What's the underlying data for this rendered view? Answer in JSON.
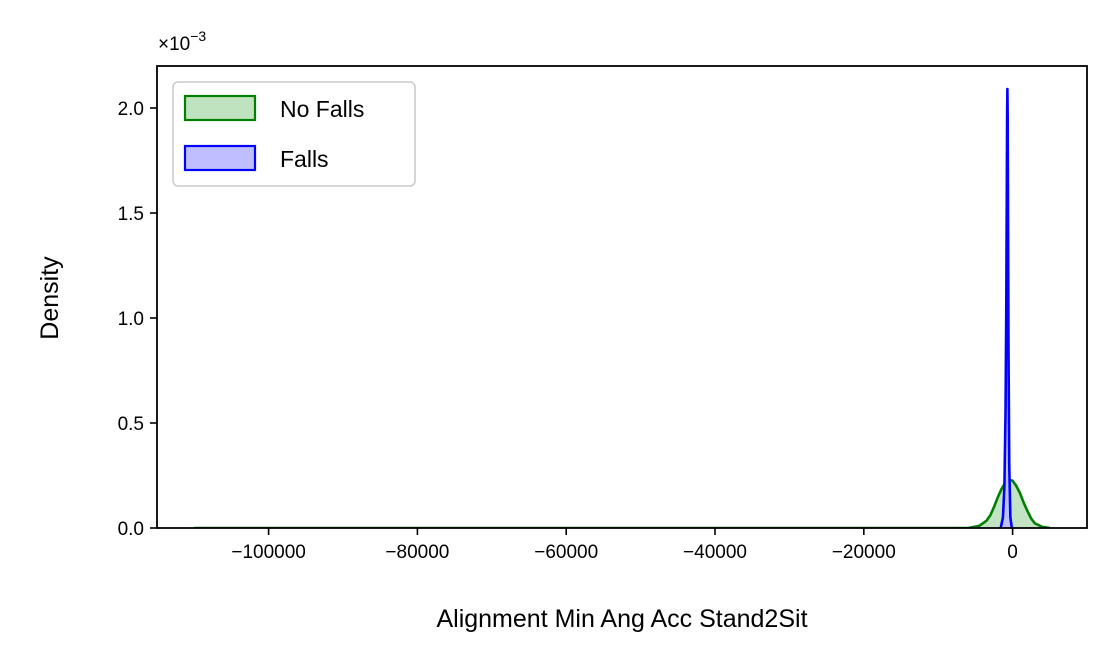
{
  "chart_data": {
    "type": "area",
    "title": "",
    "xlabel": "Alignment Min Ang Acc Stand2Sit",
    "ylabel": "Density",
    "y_scale_multiplier": "×10",
    "y_scale_exponent": "−3",
    "xlim": [
      -115000,
      10000
    ],
    "ylim": [
      0,
      2.2
    ],
    "xticks": [
      -100000,
      -80000,
      -60000,
      -40000,
      -20000,
      0
    ],
    "xtick_labels": [
      "−100000",
      "−80000",
      "−60000",
      "−40000",
      "−20000",
      "0"
    ],
    "yticks": [
      0.0,
      0.5,
      1.0,
      1.5,
      2.0
    ],
    "ytick_labels": [
      "0.0",
      "0.5",
      "1.0",
      "1.5",
      "2.0"
    ],
    "legend_position": "top-left",
    "series": [
      {
        "name": "No Falls",
        "color": "#008000",
        "fill": "#bfe3bf",
        "x": [
          -110000,
          -6000,
          -4500,
          -3500,
          -3000,
          -2500,
          -2000,
          -1500,
          -1000,
          -500,
          0,
          500,
          1000,
          1500,
          2000,
          2500,
          3000,
          4000,
          5000
        ],
        "y": [
          0.0,
          0.0,
          0.01,
          0.035,
          0.06,
          0.1,
          0.145,
          0.185,
          0.215,
          0.23,
          0.225,
          0.2,
          0.165,
          0.12,
          0.08,
          0.045,
          0.022,
          0.005,
          0.0
        ]
      },
      {
        "name": "Falls",
        "color": "#0000ff",
        "fill": "#bfbfff",
        "x": [
          -1600,
          -1300,
          -1100,
          -950,
          -850,
          -780,
          -740,
          -700,
          -660,
          -620,
          -550,
          -450,
          -300,
          -100
        ],
        "y": [
          0.0,
          0.05,
          0.2,
          0.55,
          1.05,
          1.6,
          1.95,
          2.09,
          1.95,
          1.55,
          0.85,
          0.3,
          0.05,
          0.0
        ]
      }
    ]
  }
}
